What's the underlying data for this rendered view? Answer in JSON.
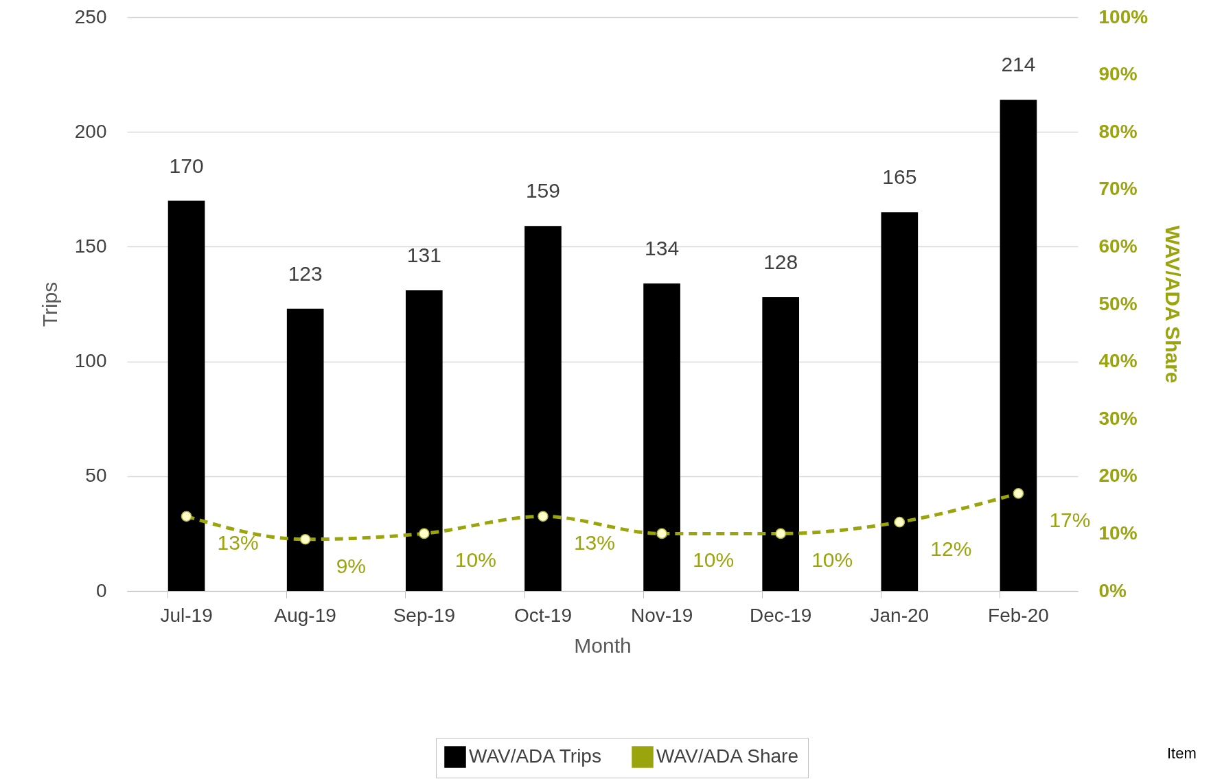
{
  "chart_data": {
    "type": "bar",
    "categories": [
      "Jul-19",
      "Aug-19",
      "Sep-19",
      "Oct-19",
      "Nov-19",
      "Dec-19",
      "Jan-20",
      "Feb-20"
    ],
    "xlabel": "Month",
    "ylabel": "Trips",
    "y2label": "WAV/ADA Share",
    "ylim": [
      0,
      250
    ],
    "yticks": [
      0,
      50,
      100,
      150,
      200,
      250
    ],
    "y2lim": [
      0,
      100
    ],
    "y2ticks": [
      {
        "value": 0,
        "label": "0%"
      },
      {
        "value": 10,
        "label": "10%"
      },
      {
        "value": 20,
        "label": "20%"
      },
      {
        "value": 30,
        "label": "30%"
      },
      {
        "value": 40,
        "label": "40%"
      },
      {
        "value": 50,
        "label": "50%"
      },
      {
        "value": 60,
        "label": "60%"
      },
      {
        "value": 70,
        "label": "70%"
      },
      {
        "value": 80,
        "label": "80%"
      },
      {
        "value": 90,
        "label": "90%"
      },
      {
        "value": 100,
        "label": "100%"
      }
    ],
    "grid": "y",
    "legend": "bottom",
    "marker": "circle",
    "line_style": "dashed",
    "series": [
      {
        "name": "WAV/ADA Trips",
        "color": "#000000",
        "values": [
          170,
          123,
          131,
          159,
          134,
          128,
          165,
          214
        ],
        "value_labels": [
          "170",
          "123",
          "131",
          "159",
          "134",
          "128",
          "165",
          "214"
        ]
      },
      {
        "name": "WAV/ADA Share",
        "type": "line",
        "axis": "y2",
        "color": "#9aa40c",
        "values": [
          13,
          9,
          10,
          13,
          10,
          10,
          12,
          17
        ],
        "value_labels": [
          "13%",
          "9%",
          "10%",
          "13%",
          "10%",
          "10%",
          "12%",
          "17%"
        ]
      }
    ],
    "annotations": [
      "Item"
    ]
  }
}
